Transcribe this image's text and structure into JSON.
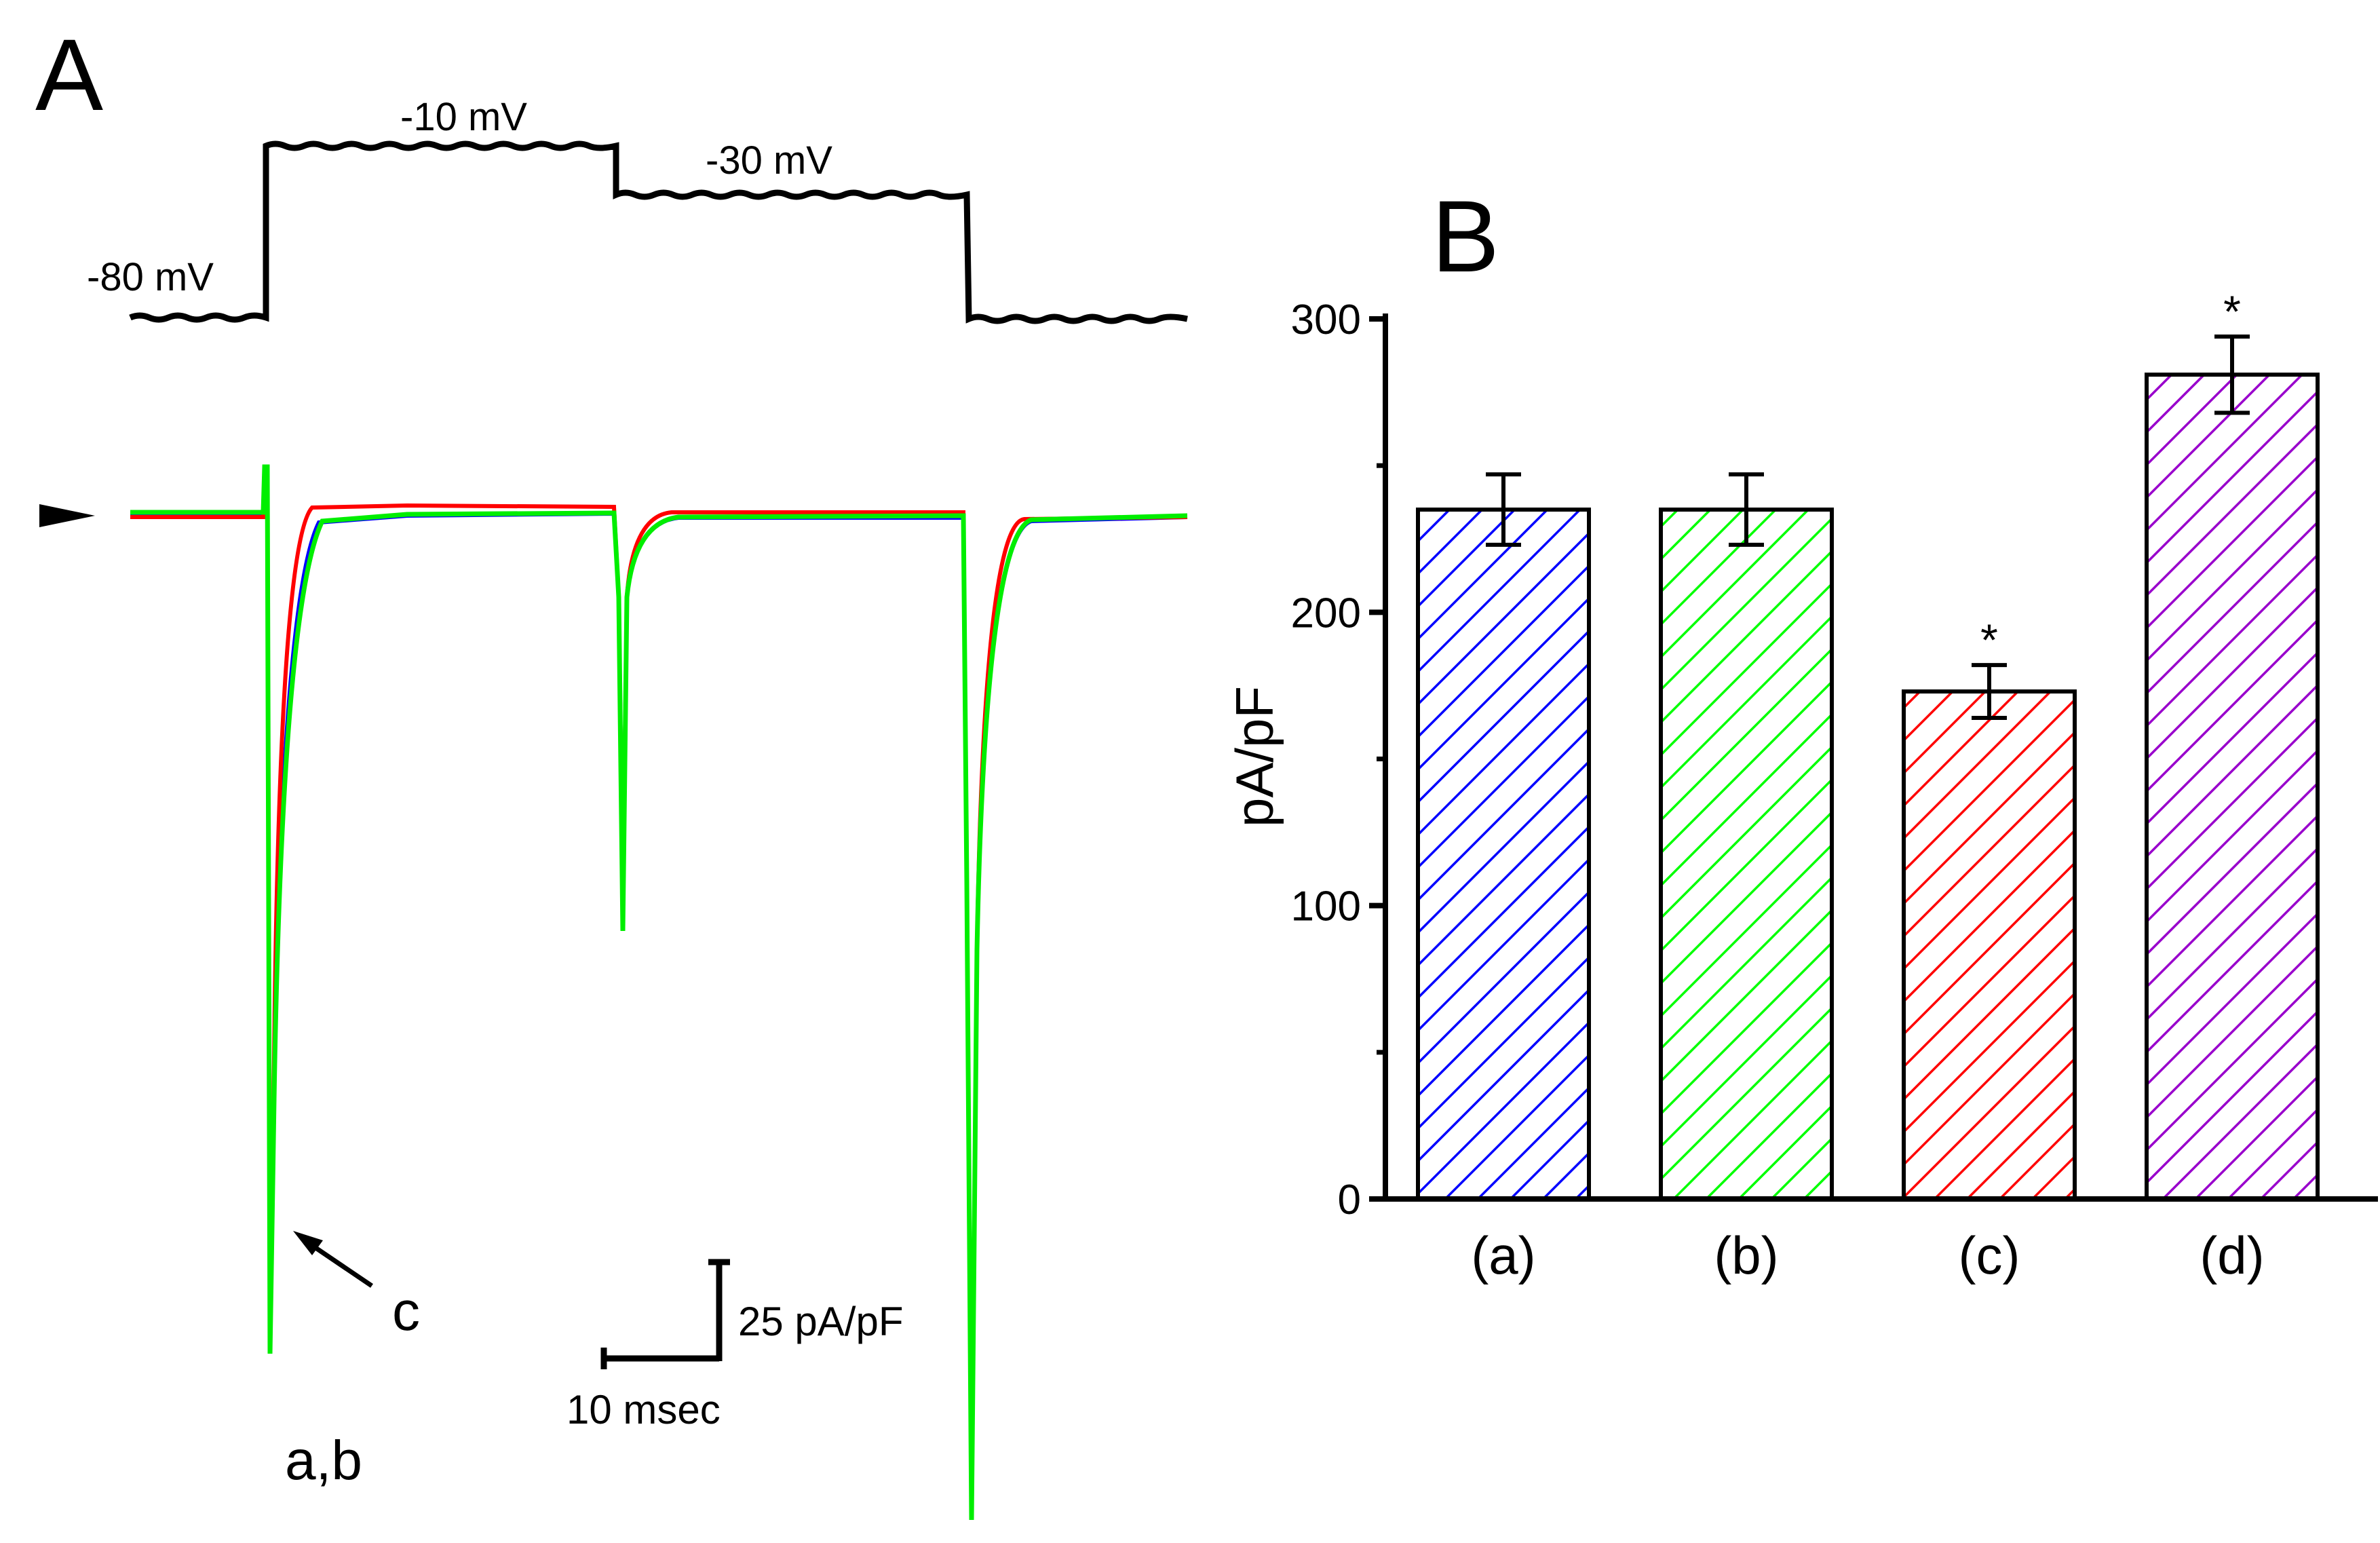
{
  "panel_a": {
    "label": "A",
    "protocol": {
      "holding_label": "-80 mV",
      "step1_label": "-10 mV",
      "step2_label": "-30 mV",
      "voltages_mV": [
        -80,
        -10,
        -30,
        -80
      ]
    },
    "traces": [
      {
        "name": "a",
        "color": "#0000ff"
      },
      {
        "name": "b",
        "color": "#00ff00"
      },
      {
        "name": "c",
        "color": "#ff0000"
      }
    ],
    "annotations": {
      "arrow_label": "c",
      "peak_label": "a,b"
    },
    "scale_bar": {
      "current_label": "25 pA/pF",
      "time_label": "10 msec"
    }
  },
  "chart_data": {
    "type": "bar",
    "panel_label": "B",
    "categories": [
      "(a)",
      "(b)",
      "(c)",
      "(d)"
    ],
    "values": [
      235,
      235,
      173,
      281
    ],
    "errors": [
      12,
      12,
      9,
      13
    ],
    "significance": [
      "",
      "",
      "*",
      "*"
    ],
    "colors": [
      "#0000ff",
      "#00ff00",
      "#ff0000",
      "#9900cc"
    ],
    "hatch": "diagonal",
    "ylabel": "pA/pF",
    "xlabel": "",
    "ylim": [
      0,
      300
    ],
    "yticks": [
      0,
      100,
      200,
      300
    ],
    "yticks_minor": [
      50,
      150,
      250
    ]
  }
}
